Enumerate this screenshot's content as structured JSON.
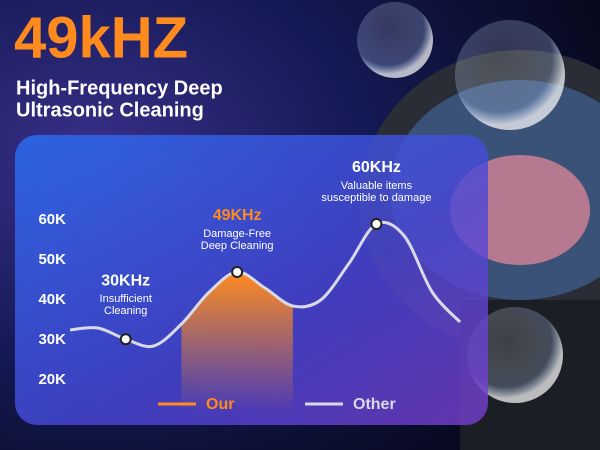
{
  "chart_data": {
    "type": "line",
    "title": "49kHZ",
    "subtitle": [
      "High-Frequency Deep",
      "Ultrasonic Cleaning"
    ],
    "categories": [
      null,
      null,
      null,
      null,
      null,
      null,
      null,
      null,
      null,
      null,
      null,
      null,
      null,
      null,
      null
    ],
    "series": [
      {
        "name": "Our",
        "color": "#ff8a1e",
        "values": [
          null,
          null,
          null,
          null,
          34000,
          42000,
          47000,
          43000,
          38500,
          null,
          null,
          null,
          null,
          null,
          null
        ]
      },
      {
        "name": "Other",
        "color": "#d9d9e6",
        "values": [
          32500,
          33000,
          30200,
          28500,
          34000,
          42000,
          47000,
          43000,
          38500,
          40000,
          49000,
          59000,
          56000,
          42000,
          34500
        ]
      }
    ],
    "ylim": [
      12000,
      70000
    ],
    "yticks": [
      {
        "value": 20000,
        "label": "20K"
      },
      {
        "value": 30000,
        "label": "30K"
      },
      {
        "value": 40000,
        "label": "40K"
      },
      {
        "value": 50000,
        "label": "50K"
      },
      {
        "value": 60000,
        "label": "60K"
      }
    ],
    "annotations": [
      {
        "title": "30KHz",
        "lines": [
          "Insufficient",
          "Cleaning"
        ]
      },
      {
        "title": "49KHz",
        "lines": [
          "Damage-Free",
          "Deep Cleaning"
        ]
      },
      {
        "title": "60KHz",
        "lines": [
          "Valuable items",
          "susceptible to damage"
        ]
      }
    ]
  }
}
